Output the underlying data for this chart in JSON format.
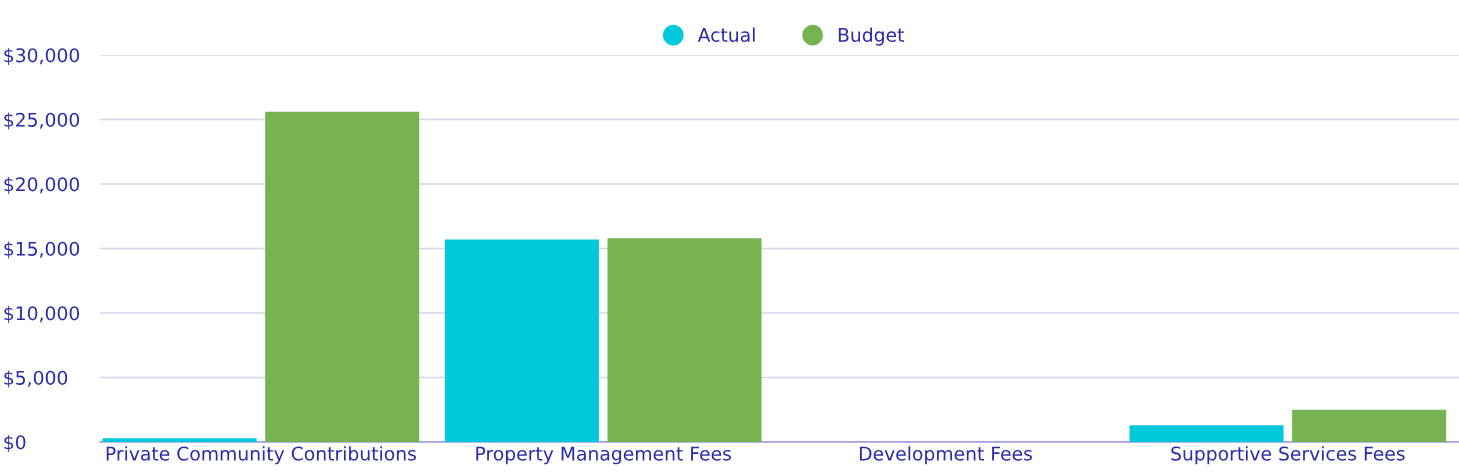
{
  "chart_data": {
    "type": "bar",
    "categories": [
      "Private Community Contributions",
      "Property Management Fees",
      "Development Fees",
      "Supportive Services Fees"
    ],
    "series": [
      {
        "name": "Actual",
        "color": "#00c9db",
        "values": [
          300,
          15700,
          0,
          1300
        ]
      },
      {
        "name": "Budget",
        "color": "#75b451",
        "values": [
          25600,
          15800,
          0,
          2500
        ]
      }
    ],
    "ylim": [
      0,
      30000
    ],
    "yticks": [
      {
        "value": 0,
        "label": "$0"
      },
      {
        "value": 5000,
        "label": "$5,000"
      },
      {
        "value": 10000,
        "label": "$10,000"
      },
      {
        "value": 15000,
        "label": "$15,000"
      },
      {
        "value": 20000,
        "label": "$20,000"
      },
      {
        "value": 25000,
        "label": "$25,000"
      },
      {
        "value": 30000,
        "label": "$30,000"
      }
    ],
    "grid": "y",
    "legend": "top"
  }
}
